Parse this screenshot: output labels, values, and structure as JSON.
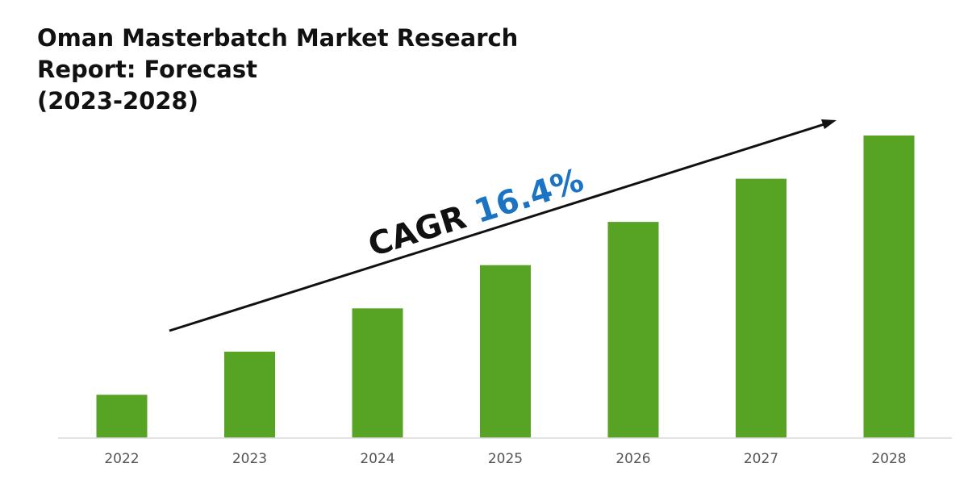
{
  "chart_data": {
    "type": "bar",
    "title_lines": [
      "Oman Masterbatch Market Research",
      "Report: Forecast",
      "(2023-2028)"
    ],
    "categories": [
      "2022",
      "2023",
      "2024",
      "2025",
      "2026",
      "2027",
      "2028"
    ],
    "values": [
      10,
      20,
      30,
      40,
      50,
      60,
      70
    ],
    "ylim": [
      0,
      70
    ],
    "grid": false,
    "legend": "none",
    "bar_color": "#57a324",
    "annotation": {
      "label": "CAGR",
      "value": "16.4%",
      "label_color": "#111111",
      "value_color": "#1b73c4"
    }
  }
}
